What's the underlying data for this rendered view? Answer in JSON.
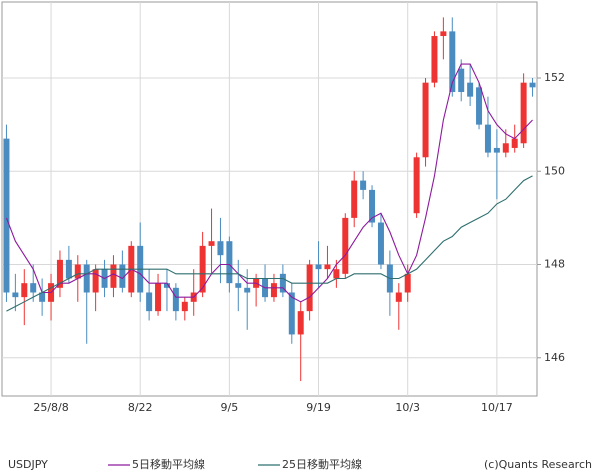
{
  "chart_data": {
    "type": "candlestick",
    "title": "USDJPY",
    "credit": "(c)Quants Research",
    "categories": [
      null,
      null,
      null,
      null,
      null,
      "25/8/8",
      null,
      null,
      null,
      null,
      null,
      null,
      null,
      null,
      null,
      "8/22",
      null,
      null,
      null,
      null,
      null,
      null,
      null,
      null,
      null,
      "9/5",
      null,
      null,
      null,
      null,
      null,
      null,
      null,
      null,
      null,
      "9/19",
      null,
      null,
      null,
      null,
      null,
      null,
      null,
      null,
      null,
      "10/3",
      null,
      null,
      null,
      null,
      null,
      null,
      null,
      null,
      null,
      "10/17",
      null,
      null,
      null,
      null
    ],
    "open": [
      150.7,
      147.4,
      147.3,
      147.6,
      147.4,
      147.2,
      147.5,
      148.1,
      147.7,
      148.0,
      147.4,
      147.9,
      147.5,
      148.0,
      147.4,
      148.4,
      147.4,
      147.0,
      147.6,
      147.5,
      147.0,
      147.2,
      147.4,
      148.4,
      148.5,
      148.5,
      147.6,
      147.5,
      147.5,
      147.7,
      147.3,
      147.8,
      147.4,
      146.5,
      147.0,
      148.0,
      147.9,
      147.7,
      147.8,
      149.0,
      149.8,
      149.6,
      148.9,
      148.0,
      147.2,
      147.4,
      149.1,
      150.3,
      151.9,
      152.9,
      153.0,
      152.2,
      151.9,
      151.8,
      151.0,
      150.5,
      150.4,
      150.5,
      150.6,
      151.9
    ],
    "high": [
      151.0,
      147.8,
      147.9,
      148.0,
      147.7,
      147.8,
      148.3,
      148.4,
      148.2,
      148.1,
      148.0,
      148.1,
      148.2,
      148.3,
      148.5,
      148.9,
      147.9,
      147.8,
      147.9,
      147.6,
      147.3,
      147.9,
      148.7,
      149.2,
      149.0,
      148.6,
      148.1,
      147.9,
      147.8,
      148.0,
      147.8,
      148.0,
      147.6,
      147.2,
      148.1,
      148.5,
      148.4,
      148.1,
      149.1,
      150.0,
      150.0,
      149.7,
      149.1,
      148.3,
      147.6,
      148.0,
      150.4,
      152.0,
      153.0,
      153.3,
      153.3,
      152.4,
      152.3,
      151.9,
      151.6,
      150.9,
      150.9,
      151.0,
      152.1,
      152.0
    ],
    "low": [
      147.2,
      147.0,
      146.7,
      147.2,
      146.9,
      146.8,
      147.3,
      147.6,
      147.2,
      146.3,
      147.0,
      147.3,
      147.3,
      147.4,
      147.3,
      147.2,
      146.8,
      146.9,
      147.0,
      146.8,
      146.8,
      146.9,
      147.3,
      147.8,
      147.6,
      147.4,
      147.0,
      146.6,
      147.1,
      147.2,
      147.2,
      147.3,
      146.3,
      145.5,
      146.8,
      147.5,
      147.7,
      147.5,
      147.7,
      148.8,
      149.4,
      148.8,
      147.9,
      146.9,
      146.6,
      147.2,
      149.0,
      150.1,
      151.8,
      152.4,
      151.6,
      151.5,
      151.4,
      150.9,
      150.3,
      149.4,
      150.3,
      150.4,
      150.5,
      151.6
    ],
    "close": [
      147.4,
      147.3,
      147.6,
      147.4,
      147.2,
      147.6,
      148.1,
      147.7,
      148.0,
      147.4,
      147.9,
      147.5,
      148.0,
      147.5,
      148.4,
      147.4,
      147.0,
      147.6,
      147.5,
      147.0,
      147.2,
      147.4,
      148.4,
      148.5,
      148.2,
      147.6,
      147.5,
      147.4,
      147.7,
      147.3,
      147.6,
      147.4,
      146.5,
      147.0,
      148.0,
      147.9,
      148.0,
      147.9,
      149.0,
      149.8,
      149.6,
      148.9,
      148.0,
      147.4,
      147.4,
      147.8,
      150.3,
      151.9,
      152.9,
      153.0,
      151.7,
      151.7,
      151.6,
      151.0,
      150.4,
      150.4,
      150.6,
      150.7,
      151.9,
      151.8
    ],
    "up_color": "#ee3333",
    "down_color": "#4a8cc0",
    "series": [
      {
        "name": "5日移動平均線",
        "color": "#8e1a9e",
        "values": [
          149.0,
          148.5,
          148.2,
          147.9,
          147.4,
          147.4,
          147.6,
          147.6,
          147.7,
          147.8,
          147.8,
          147.7,
          147.8,
          147.7,
          147.9,
          147.8,
          147.6,
          147.6,
          147.6,
          147.3,
          147.3,
          147.3,
          147.5,
          147.8,
          148.0,
          148.0,
          147.8,
          147.6,
          147.6,
          147.5,
          147.5,
          147.5,
          147.3,
          147.2,
          147.3,
          147.5,
          147.7,
          148.0,
          148.2,
          148.5,
          148.8,
          149.0,
          149.1,
          148.7,
          148.2,
          147.8,
          148.2,
          149.0,
          149.9,
          151.1,
          151.9,
          152.3,
          152.3,
          151.9,
          151.3,
          151.0,
          150.8,
          150.7,
          150.9,
          151.1
        ]
      },
      {
        "name": "25日移動平均線",
        "color": "#2f6f6f",
        "values": [
          147.0,
          147.1,
          147.2,
          147.3,
          147.4,
          147.5,
          147.6,
          147.7,
          147.8,
          147.8,
          147.9,
          147.9,
          147.9,
          147.9,
          147.9,
          147.9,
          147.9,
          147.9,
          147.9,
          147.8,
          147.8,
          147.8,
          147.8,
          147.8,
          147.8,
          147.8,
          147.8,
          147.7,
          147.7,
          147.7,
          147.7,
          147.7,
          147.6,
          147.6,
          147.6,
          147.6,
          147.6,
          147.7,
          147.7,
          147.8,
          147.8,
          147.8,
          147.8,
          147.7,
          147.7,
          147.8,
          147.9,
          148.1,
          148.3,
          148.5,
          148.6,
          148.8,
          148.9,
          149.0,
          149.1,
          149.3,
          149.4,
          149.6,
          149.8,
          149.9
        ]
      }
    ],
    "ylim": [
      145.18,
      153.63
    ],
    "yticks": [
      146,
      148,
      150,
      152
    ],
    "grid": true
  }
}
